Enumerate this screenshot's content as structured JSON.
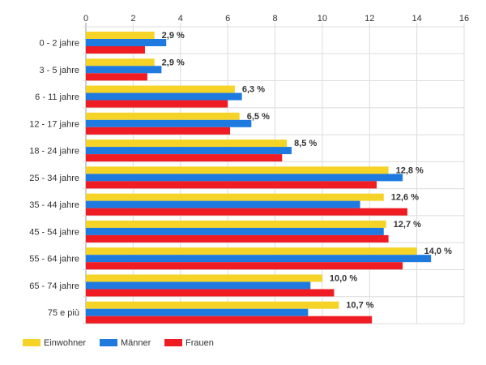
{
  "chart_data": {
    "type": "bar",
    "orientation": "horizontal",
    "categories": [
      "0 - 2 jahre",
      "3 - 5 jahre",
      "6 - 11 jahre",
      "12 - 17 jahre",
      "18 - 24 jahre",
      "25 - 34 jahre",
      "35 - 44 jahre",
      "45 - 54 jahre",
      "55 - 64 jahre",
      "65 - 74 jahre",
      "75 e più"
    ],
    "series": [
      {
        "name": "Einwohner",
        "color": "#f5d327",
        "values": [
          2.9,
          2.9,
          6.3,
          6.5,
          8.5,
          12.8,
          12.6,
          12.7,
          14.0,
          10.0,
          10.7
        ]
      },
      {
        "name": "Männer",
        "color": "#1f7ae0",
        "values": [
          3.4,
          3.2,
          6.6,
          7.0,
          8.7,
          13.4,
          11.6,
          12.6,
          14.6,
          9.5,
          9.4
        ]
      },
      {
        "name": "Frauen",
        "color": "#ef1c24",
        "values": [
          2.5,
          2.6,
          6.0,
          6.1,
          8.3,
          12.3,
          13.6,
          12.8,
          13.4,
          10.5,
          12.1
        ]
      }
    ],
    "data_labels": [
      "2,9 %",
      "2,9 %",
      "6,3 %",
      "6,5 %",
      "8,5 %",
      "12,8 %",
      "12,6 %",
      "12,7 %",
      "14,0 %",
      "10,0 %",
      "10,7 %"
    ],
    "x_ticks": [
      "0",
      "2",
      "4",
      "6",
      "8",
      "10",
      "12",
      "14",
      "16"
    ],
    "xlim": [
      0,
      16
    ],
    "x_axis_position": "top",
    "grid": true,
    "legend_position": "bottom-left",
    "title": "",
    "xlabel": "",
    "ylabel": ""
  }
}
